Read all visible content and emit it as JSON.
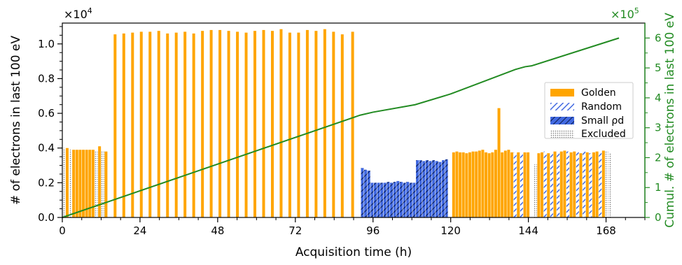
{
  "chart_data": {
    "type": "bar",
    "xlabel": "Acquisition time (h)",
    "ylabel": "# of electrons in last 100 eV",
    "y2label": "Cumul. # of electrons in last 100 eV",
    "ymultiplier": "×10",
    "ymultiplier_exp": "4",
    "y2multiplier": "×10",
    "y2multiplier_exp": "5",
    "xlim": [
      0,
      180
    ],
    "ylim": [
      0,
      1.12
    ],
    "y2lim": [
      0,
      6.5
    ],
    "xticks": [
      0,
      24,
      48,
      72,
      96,
      120,
      144,
      168
    ],
    "xtick_labels": [
      "0",
      "24",
      "48",
      "72",
      "96",
      "120",
      "144",
      "168"
    ],
    "yticks": [
      0.0,
      0.2,
      0.4,
      0.6,
      0.8,
      1.0
    ],
    "ytick_labels": [
      "0.0",
      "0.2",
      "0.4",
      "0.6",
      "0.8",
      "1.0"
    ],
    "y2ticks": [
      0,
      1,
      2,
      3,
      4,
      5,
      6
    ],
    "y2tick_labels": [
      "0",
      "1",
      "2",
      "3",
      "4",
      "5",
      "6"
    ],
    "legend_position": "right",
    "colors": {
      "golden": "#ffa500",
      "random": "#4169e1",
      "small_pd": "#4169e1",
      "excluded": "#888888",
      "cumulative": "#228b22"
    },
    "legend": [
      {
        "key": "golden",
        "label": "Golden"
      },
      {
        "key": "random",
        "label": "Random"
      },
      {
        "key": "small_pd",
        "label": "Small ρd"
      },
      {
        "key": "excluded",
        "label": "Excluded"
      }
    ],
    "bars": [
      {
        "x": 0.5,
        "value": 0.4,
        "category": "excluded"
      },
      {
        "x": 1.5,
        "value": 0.4,
        "category": "golden"
      },
      {
        "x": 2.5,
        "value": 0.39,
        "category": "excluded"
      },
      {
        "x": 3.5,
        "value": 0.39,
        "category": "golden"
      },
      {
        "x": 4.5,
        "value": 0.39,
        "category": "golden"
      },
      {
        "x": 5.5,
        "value": 0.39,
        "category": "golden"
      },
      {
        "x": 6.5,
        "value": 0.39,
        "category": "golden"
      },
      {
        "x": 7.5,
        "value": 0.39,
        "category": "golden"
      },
      {
        "x": 8.5,
        "value": 0.39,
        "category": "golden"
      },
      {
        "x": 9.5,
        "value": 0.39,
        "category": "golden"
      },
      {
        "x": 10.5,
        "value": 0.38,
        "category": "excluded"
      },
      {
        "x": 11.5,
        "value": 0.41,
        "category": "golden"
      },
      {
        "x": 12.5,
        "value": 0.38,
        "category": "excluded"
      },
      {
        "x": 13.5,
        "value": 0.38,
        "category": "golden"
      },
      {
        "x": 16.3,
        "value": 1.055,
        "category": "golden"
      },
      {
        "x": 19.0,
        "value": 1.06,
        "category": "golden"
      },
      {
        "x": 21.7,
        "value": 1.065,
        "category": "golden"
      },
      {
        "x": 24.4,
        "value": 1.07,
        "category": "golden"
      },
      {
        "x": 27.1,
        "value": 1.07,
        "category": "golden"
      },
      {
        "x": 29.8,
        "value": 1.075,
        "category": "golden"
      },
      {
        "x": 32.5,
        "value": 1.06,
        "category": "golden"
      },
      {
        "x": 35.2,
        "value": 1.065,
        "category": "golden"
      },
      {
        "x": 37.9,
        "value": 1.07,
        "category": "golden"
      },
      {
        "x": 40.6,
        "value": 1.06,
        "category": "golden"
      },
      {
        "x": 43.3,
        "value": 1.075,
        "category": "golden"
      },
      {
        "x": 46.0,
        "value": 1.08,
        "category": "golden"
      },
      {
        "x": 48.7,
        "value": 1.08,
        "category": "golden"
      },
      {
        "x": 51.4,
        "value": 1.075,
        "category": "golden"
      },
      {
        "x": 54.1,
        "value": 1.07,
        "category": "golden"
      },
      {
        "x": 56.8,
        "value": 1.065,
        "category": "golden"
      },
      {
        "x": 59.5,
        "value": 1.075,
        "category": "golden"
      },
      {
        "x": 62.2,
        "value": 1.08,
        "category": "golden"
      },
      {
        "x": 64.9,
        "value": 1.075,
        "category": "golden"
      },
      {
        "x": 67.6,
        "value": 1.085,
        "category": "golden"
      },
      {
        "x": 70.3,
        "value": 1.065,
        "category": "golden"
      },
      {
        "x": 73.0,
        "value": 1.065,
        "category": "golden"
      },
      {
        "x": 75.7,
        "value": 1.08,
        "category": "golden"
      },
      {
        "x": 78.4,
        "value": 1.075,
        "category": "golden"
      },
      {
        "x": 81.1,
        "value": 1.085,
        "category": "golden"
      },
      {
        "x": 83.8,
        "value": 1.07,
        "category": "golden"
      },
      {
        "x": 86.5,
        "value": 1.055,
        "category": "golden"
      },
      {
        "x": 89.7,
        "value": 1.07,
        "category": "golden"
      },
      {
        "x": 92.7,
        "value": 0.285,
        "category": "small_pd"
      },
      {
        "x": 93.7,
        "value": 0.275,
        "category": "small_pd"
      },
      {
        "x": 94.7,
        "value": 0.27,
        "category": "small_pd"
      },
      {
        "x": 95.7,
        "value": 0.2,
        "category": "small_pd"
      },
      {
        "x": 96.7,
        "value": 0.2,
        "category": "small_pd"
      },
      {
        "x": 97.7,
        "value": 0.2,
        "category": "small_pd"
      },
      {
        "x": 98.7,
        "value": 0.2,
        "category": "small_pd"
      },
      {
        "x": 99.7,
        "value": 0.2,
        "category": "small_pd"
      },
      {
        "x": 100.7,
        "value": 0.205,
        "category": "small_pd"
      },
      {
        "x": 101.7,
        "value": 0.2,
        "category": "small_pd"
      },
      {
        "x": 102.7,
        "value": 0.205,
        "category": "small_pd"
      },
      {
        "x": 103.7,
        "value": 0.21,
        "category": "small_pd"
      },
      {
        "x": 104.7,
        "value": 0.205,
        "category": "small_pd"
      },
      {
        "x": 105.7,
        "value": 0.2,
        "category": "small_pd"
      },
      {
        "x": 106.7,
        "value": 0.205,
        "category": "small_pd"
      },
      {
        "x": 107.7,
        "value": 0.2,
        "category": "small_pd"
      },
      {
        "x": 108.7,
        "value": 0.2,
        "category": "small_pd"
      },
      {
        "x": 109.7,
        "value": 0.33,
        "category": "small_pd"
      },
      {
        "x": 110.7,
        "value": 0.33,
        "category": "small_pd"
      },
      {
        "x": 111.7,
        "value": 0.325,
        "category": "small_pd"
      },
      {
        "x": 112.7,
        "value": 0.33,
        "category": "small_pd"
      },
      {
        "x": 113.7,
        "value": 0.325,
        "category": "small_pd"
      },
      {
        "x": 114.7,
        "value": 0.33,
        "category": "small_pd"
      },
      {
        "x": 115.7,
        "value": 0.325,
        "category": "small_pd"
      },
      {
        "x": 116.7,
        "value": 0.32,
        "category": "small_pd"
      },
      {
        "x": 117.7,
        "value": 0.33,
        "category": "small_pd"
      },
      {
        "x": 118.7,
        "value": 0.335,
        "category": "small_pd"
      },
      {
        "x": 120.9,
        "value": 0.375,
        "category": "golden"
      },
      {
        "x": 121.9,
        "value": 0.38,
        "category": "golden"
      },
      {
        "x": 122.9,
        "value": 0.375,
        "category": "golden"
      },
      {
        "x": 123.9,
        "value": 0.375,
        "category": "golden"
      },
      {
        "x": 124.9,
        "value": 0.37,
        "category": "golden"
      },
      {
        "x": 125.9,
        "value": 0.375,
        "category": "golden"
      },
      {
        "x": 126.9,
        "value": 0.38,
        "category": "golden"
      },
      {
        "x": 127.9,
        "value": 0.38,
        "category": "golden"
      },
      {
        "x": 128.9,
        "value": 0.385,
        "category": "golden"
      },
      {
        "x": 129.9,
        "value": 0.39,
        "category": "golden"
      },
      {
        "x": 130.9,
        "value": 0.375,
        "category": "golden"
      },
      {
        "x": 131.9,
        "value": 0.37,
        "category": "golden"
      },
      {
        "x": 132.9,
        "value": 0.375,
        "category": "golden"
      },
      {
        "x": 133.9,
        "value": 0.39,
        "category": "golden"
      },
      {
        "x": 134.9,
        "value": 0.63,
        "category": "golden"
      },
      {
        "x": 135.9,
        "value": 0.375,
        "category": "golden"
      },
      {
        "x": 136.9,
        "value": 0.385,
        "category": "golden"
      },
      {
        "x": 137.9,
        "value": 0.39,
        "category": "golden"
      },
      {
        "x": 138.9,
        "value": 0.375,
        "category": "golden"
      },
      {
        "x": 139.9,
        "value": 0.375,
        "category": "random"
      },
      {
        "x": 140.9,
        "value": 0.375,
        "category": "golden"
      },
      {
        "x": 141.9,
        "value": 0.37,
        "category": "random"
      },
      {
        "x": 142.9,
        "value": 0.375,
        "category": "golden"
      },
      {
        "x": 143.9,
        "value": 0.375,
        "category": "golden"
      },
      {
        "x": 146.2,
        "value": 0.305,
        "category": "excluded"
      },
      {
        "x": 147.2,
        "value": 0.37,
        "category": "golden"
      },
      {
        "x": 148.2,
        "value": 0.375,
        "category": "golden"
      },
      {
        "x": 149.2,
        "value": 0.38,
        "category": "random"
      },
      {
        "x": 150.2,
        "value": 0.37,
        "category": "golden"
      },
      {
        "x": 151.2,
        "value": 0.375,
        "category": "random"
      },
      {
        "x": 152.2,
        "value": 0.38,
        "category": "golden"
      },
      {
        "x": 153.2,
        "value": 0.38,
        "category": "random"
      },
      {
        "x": 154.2,
        "value": 0.38,
        "category": "golden"
      },
      {
        "x": 155.2,
        "value": 0.385,
        "category": "golden"
      },
      {
        "x": 156.2,
        "value": 0.38,
        "category": "random"
      },
      {
        "x": 157.2,
        "value": 0.375,
        "category": "golden"
      },
      {
        "x": 158.2,
        "value": 0.38,
        "category": "golden"
      },
      {
        "x": 159.2,
        "value": 0.375,
        "category": "random"
      },
      {
        "x": 160.2,
        "value": 0.37,
        "category": "golden"
      },
      {
        "x": 161.2,
        "value": 0.38,
        "category": "random"
      },
      {
        "x": 162.2,
        "value": 0.375,
        "category": "golden"
      },
      {
        "x": 163.2,
        "value": 0.37,
        "category": "random"
      },
      {
        "x": 164.2,
        "value": 0.375,
        "category": "golden"
      },
      {
        "x": 165.2,
        "value": 0.38,
        "category": "golden"
      },
      {
        "x": 166.2,
        "value": 0.375,
        "category": "random"
      },
      {
        "x": 167.2,
        "value": 0.385,
        "category": "golden"
      },
      {
        "x": 168.2,
        "value": 0.38,
        "category": "excluded"
      },
      {
        "x": 169.2,
        "value": 0.37,
        "category": "excluded"
      }
    ],
    "cumulative_series": {
      "name": "",
      "axis": "right",
      "points": [
        [
          0,
          0
        ],
        [
          14,
          0.52
        ],
        [
          92,
          3.42
        ],
        [
          96,
          3.52
        ],
        [
          109,
          3.77
        ],
        [
          120,
          4.13
        ],
        [
          140,
          4.95
        ],
        [
          143,
          5.04
        ],
        [
          145,
          5.07
        ],
        [
          172,
          6.0
        ]
      ]
    }
  }
}
